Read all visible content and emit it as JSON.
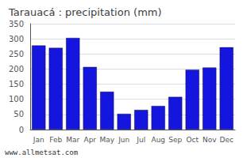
{
  "chart_data": {
    "type": "bar",
    "title": "Tarauacá : precipitation (mm)",
    "categories": [
      "Jan",
      "Feb",
      "Mar",
      "Apr",
      "May",
      "Jun",
      "Jul",
      "Aug",
      "Sep",
      "Oct",
      "Nov",
      "Dec"
    ],
    "values": [
      278,
      270,
      303,
      207,
      125,
      52,
      65,
      78,
      108,
      198,
      205,
      272
    ],
    "color": "#1515e0",
    "ylim": [
      0,
      350
    ],
    "yticks": [
      0,
      50,
      100,
      150,
      200,
      250,
      300,
      350
    ],
    "grid": true,
    "annotation": "www.allmetsat.com"
  }
}
